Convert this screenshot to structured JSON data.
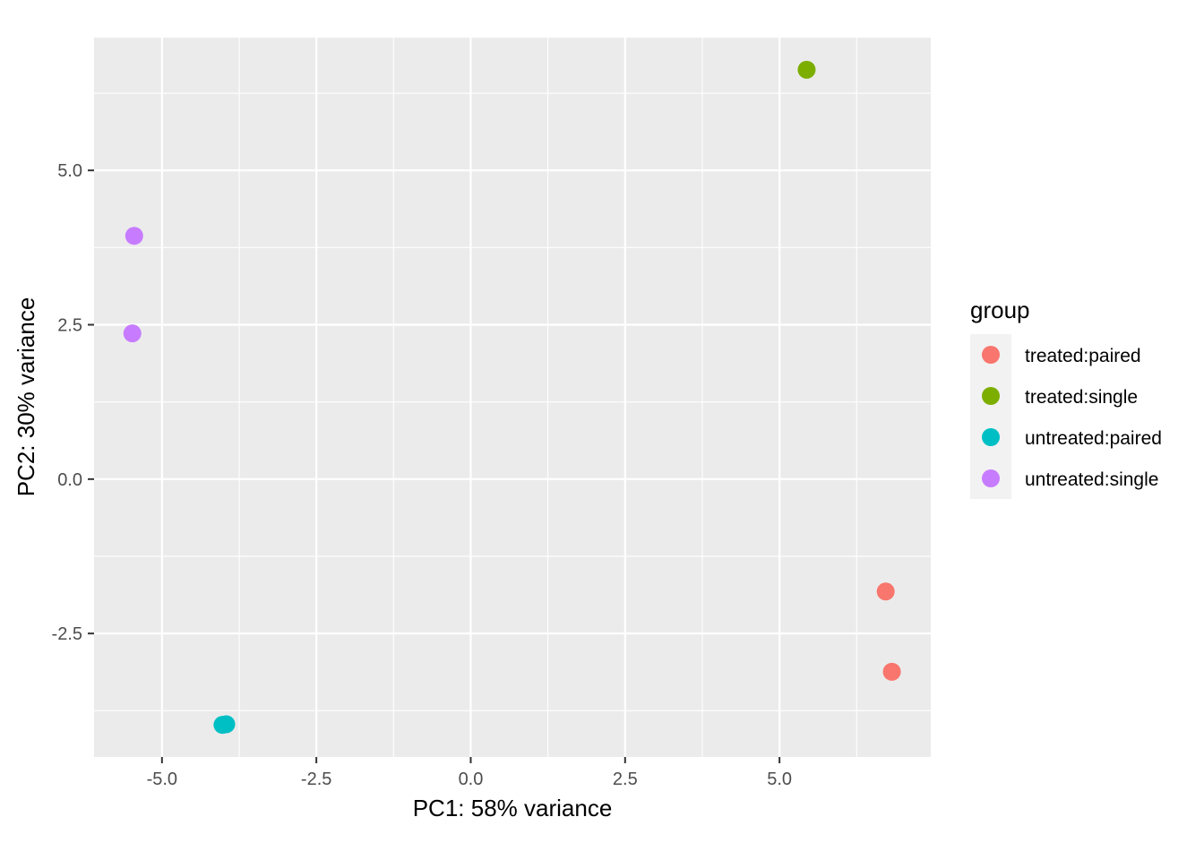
{
  "chart_data": {
    "type": "scatter",
    "title": "",
    "xlabel": "PC1: 58% variance",
    "ylabel": "PC2: 30% variance",
    "xlim": [
      -6.1,
      7.45
    ],
    "ylim": [
      -4.5,
      7.15
    ],
    "x_ticks": [
      -5.0,
      -2.5,
      0.0,
      2.5,
      5.0
    ],
    "x_tick_labels": [
      "-5.0",
      "-2.5",
      "0.0",
      "2.5",
      "5.0"
    ],
    "y_ticks": [
      -2.5,
      0.0,
      2.5,
      5.0
    ],
    "y_tick_labels": [
      "-2.5",
      "0.0",
      "2.5",
      "5.0"
    ],
    "grid": true,
    "legend": {
      "title": "group",
      "placement": "right",
      "entries": [
        "treated:paired",
        "treated:single",
        "untreated:paired",
        "untreated:single"
      ]
    },
    "series": [
      {
        "name": "treated:paired",
        "color": "#F8766D",
        "points": [
          [
            6.72,
            -1.82
          ],
          [
            6.82,
            -3.12
          ]
        ]
      },
      {
        "name": "treated:single",
        "color": "#7CAE00",
        "points": [
          [
            5.44,
            6.63
          ]
        ]
      },
      {
        "name": "untreated:paired",
        "color": "#00BFC4",
        "points": [
          [
            -4.02,
            -3.98
          ],
          [
            -3.96,
            -3.97
          ]
        ]
      },
      {
        "name": "untreated:single",
        "color": "#C77CFF",
        "points": [
          [
            -5.45,
            3.94
          ],
          [
            -5.48,
            2.36
          ]
        ]
      }
    ],
    "panel_background": "#EBEBEB",
    "grid_color": "#FFFFFF"
  }
}
